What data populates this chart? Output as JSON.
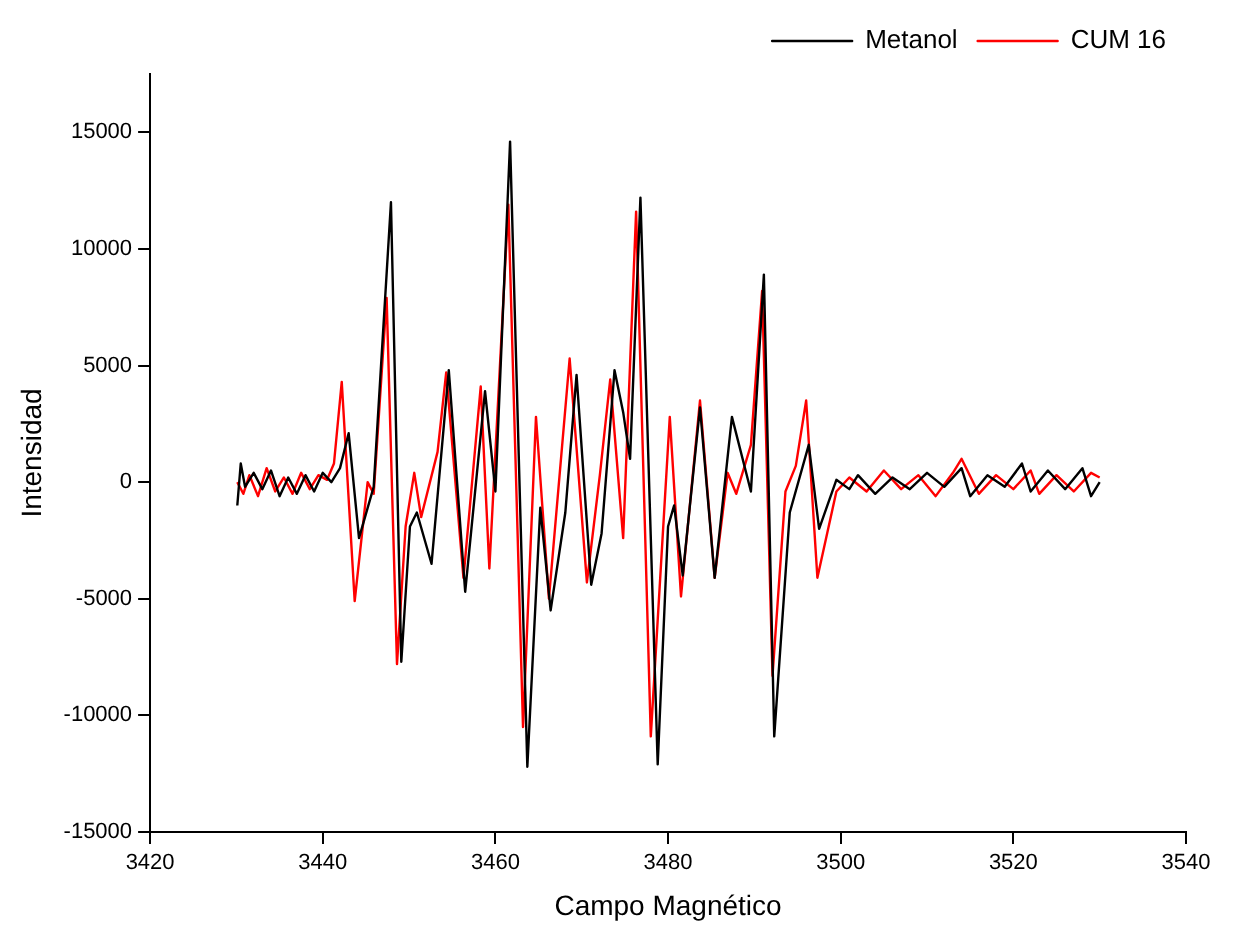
{
  "chart_data": {
    "type": "line",
    "xlabel": "Campo Magnético",
    "ylabel": "Intensidad",
    "xlim": [
      3420,
      3540
    ],
    "xticks": [
      3420,
      3440,
      3460,
      3480,
      3500,
      3520,
      3540
    ],
    "ylim": [
      -15000,
      17500
    ],
    "yticks": [
      -15000,
      -10000,
      -5000,
      0,
      5000,
      10000,
      15000
    ],
    "grid": false,
    "legend": "top right",
    "marker": "none",
    "line_style": "solid",
    "series": [
      {
        "name": "Metanol",
        "color": "#000000",
        "x": [
          3430.1,
          3430.5,
          3431,
          3432,
          3433,
          3434,
          3435,
          3436,
          3437,
          3438,
          3439,
          3440,
          3441,
          3442,
          3443.0,
          3444.2,
          3445.9,
          3447.9,
          3449.1,
          3450.1,
          3450.9,
          3452.6,
          3454.6,
          3456.5,
          3458.8,
          3460.0,
          3461.7,
          3463.7,
          3465.2,
          3466.4,
          3468.1,
          3469.4,
          3471.1,
          3472.3,
          3473.8,
          3474.8,
          3475.6,
          3476.8,
          3478.8,
          3480.0,
          3480.7,
          3481.7,
          3483.7,
          3485.4,
          3487.4,
          3489.6,
          3491.1,
          3492.3,
          3494.1,
          3496.3,
          3497.5,
          3499.5,
          3501,
          3502,
          3504,
          3506,
          3508,
          3510,
          3512,
          3514,
          3515,
          3517,
          3519,
          3521,
          3522,
          3524,
          3526,
          3528,
          3529,
          3530
        ],
        "values": [
          -1000,
          800,
          -200,
          400,
          -300,
          500,
          -600,
          200,
          -500,
          300,
          -400,
          400,
          0,
          600,
          2100,
          -2400,
          -200,
          12000,
          -7700,
          -1900,
          -1300,
          -3500,
          4800,
          -4700,
          3900,
          -400,
          14600,
          -12200,
          -1100,
          -5500,
          -1300,
          4600,
          -4400,
          -2200,
          4800,
          3000,
          1000,
          12200,
          -12100,
          -1900,
          -1000,
          -4000,
          3200,
          -4100,
          2800,
          -400,
          8900,
          -10900,
          -1300,
          1600,
          -2000,
          100,
          -300,
          300,
          -500,
          200,
          -300,
          400,
          -200,
          600,
          -600,
          300,
          -200,
          800,
          -400,
          500,
          -300,
          600,
          -600,
          0
        ]
      },
      {
        "name": "CUM 16",
        "color": "#ff0000",
        "x": [
          3430.1,
          3430.8,
          3431.5,
          3432.5,
          3433.5,
          3434.5,
          3435.5,
          3436.5,
          3437.5,
          3438.5,
          3439.5,
          3440.5,
          3441.3,
          3442.2,
          3443.7,
          3445.2,
          3445.9,
          3447.4,
          3448.6,
          3449.6,
          3450.6,
          3451.4,
          3453.3,
          3454.3,
          3456.3,
          3458.3,
          3459.3,
          3461.5,
          3463.2,
          3464.7,
          3466.2,
          3468.6,
          3470.6,
          3472.1,
          3473.3,
          3474.8,
          3476.3,
          3478.0,
          3480.2,
          3481.5,
          3483.7,
          3485.4,
          3486.9,
          3487.9,
          3489.6,
          3490.9,
          3492.1,
          3493.6,
          3494.8,
          3496.0,
          3497.3,
          3499.5,
          3501,
          3503,
          3505,
          3507,
          3509,
          3511,
          3513,
          3514,
          3516,
          3518,
          3520,
          3522,
          3523,
          3525,
          3527,
          3529,
          3530
        ],
        "values": [
          0,
          -500,
          300,
          -600,
          600,
          -400,
          200,
          -500,
          400,
          -300,
          300,
          100,
          800,
          4300,
          -5100,
          0,
          -500,
          7900,
          -7800,
          -1900,
          400,
          -1500,
          1300,
          4700,
          -4100,
          4100,
          -3700,
          11900,
          -10500,
          2800,
          -5000,
          5300,
          -4300,
          300,
          4400,
          -2400,
          11600,
          -10900,
          2800,
          -4900,
          3500,
          -4100,
          400,
          -500,
          1600,
          8200,
          -8300,
          -400,
          700,
          3500,
          -4100,
          -400,
          200,
          -400,
          500,
          -300,
          300,
          -600,
          400,
          1000,
          -500,
          300,
          -300,
          500,
          -500,
          300,
          -400,
          400,
          200
        ]
      }
    ]
  }
}
